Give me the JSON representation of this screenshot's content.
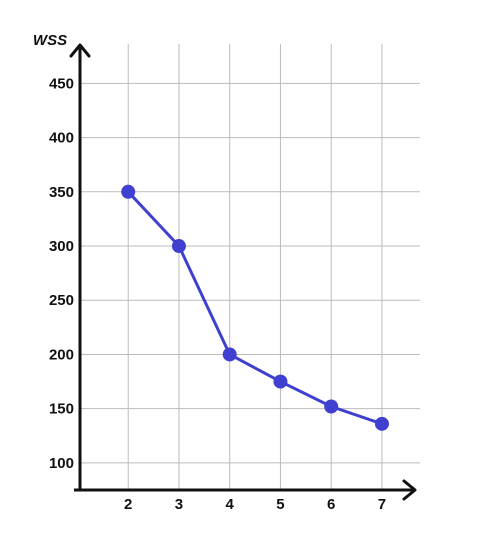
{
  "chart_data": {
    "type": "line",
    "title": "",
    "xlabel": "",
    "ylabel": "WSS",
    "x": [
      2,
      3,
      4,
      5,
      6,
      7
    ],
    "series": [
      {
        "values": [
          350,
          300,
          200,
          175,
          152,
          136
        ]
      }
    ],
    "x_ticks": [
      "2",
      "3",
      "4",
      "5",
      "6",
      "7"
    ],
    "y_ticks": [
      "100",
      "150",
      "200",
      "250",
      "300",
      "350",
      "400",
      "450"
    ],
    "xlim": [
      1.05,
      7.75
    ],
    "ylim": [
      75,
      490
    ],
    "grid": true,
    "legend": "none",
    "colors": {
      "line": "#4040d0",
      "marker": "#4040d0",
      "grid": "#bbbbbb",
      "axis": "#111111"
    }
  }
}
